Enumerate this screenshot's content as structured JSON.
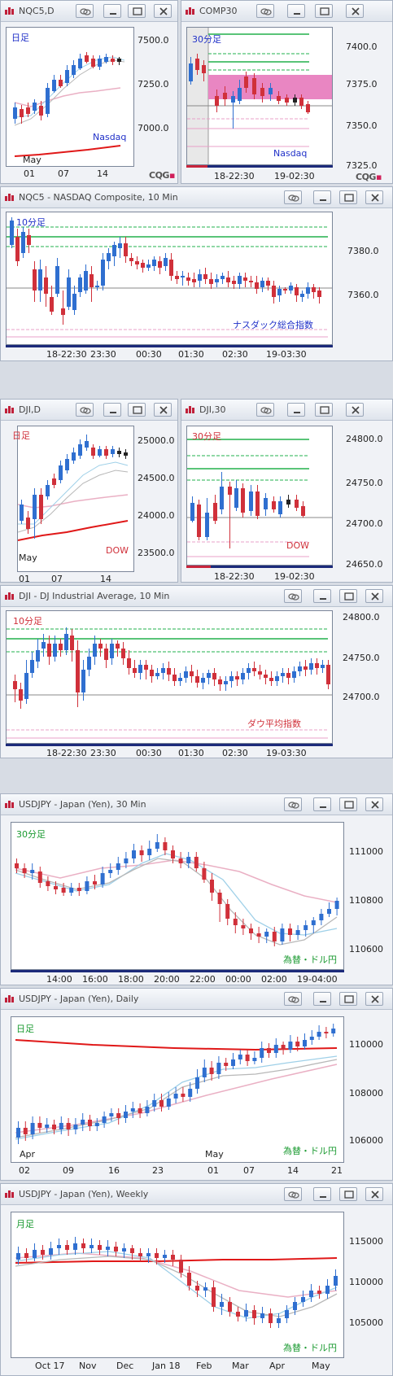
{
  "nqc5_daily": {
    "title": "NQC5,D",
    "period": "日足",
    "name": "Nasdaq",
    "y_ticks": [
      "7500.0",
      "7250.0",
      "7000.0"
    ],
    "x_ticks": [
      "01",
      "07",
      "14"
    ],
    "month": "May"
  },
  "comp30": {
    "title": "COMP30",
    "period": "30分足",
    "name": "Nasdaq",
    "y_ticks": [
      "7400.0",
      "7375.0",
      "7350.0",
      "7325.0"
    ],
    "x_ticks": [
      "18-22:30",
      "19-02:30"
    ]
  },
  "nqc5_10min": {
    "title": "NQC5 - NASDAQ Composite, 10 Min",
    "period": "10分足",
    "name": "ナスダック総合指数",
    "y_ticks": [
      "7380.0",
      "7360.0"
    ],
    "x_ticks": [
      "18-22:30",
      "23:30",
      "00:30",
      "01:30",
      "02:30",
      "19-03:30"
    ]
  },
  "dji_daily": {
    "title": "DJI,D",
    "period": "日足",
    "name": "DOW",
    "y_ticks": [
      "25000.0",
      "24500.0",
      "24000.0",
      "23500.0"
    ],
    "x_ticks": [
      "01",
      "07",
      "14"
    ],
    "month": "May"
  },
  "dji30": {
    "title": "DJI,30",
    "period": "30分足",
    "name": "DOW",
    "y_ticks": [
      "24800.0",
      "24750.0",
      "24700.0",
      "24650.0"
    ],
    "x_ticks": [
      "18-22:30",
      "19-02:30"
    ]
  },
  "dji_10min": {
    "title": "DJI - DJ Industrial Average, 10 Min",
    "period": "10分足",
    "name": "ダウ平均指数",
    "y_ticks": [
      "24800.0",
      "24750.0",
      "24700.0"
    ],
    "x_ticks": [
      "18-22:30",
      "23:30",
      "00:30",
      "01:30",
      "02:30",
      "19-03:30"
    ]
  },
  "usdjpy_30": {
    "title": "USDJPY - Japan (Yen), 30 Min",
    "period": "30分足",
    "name": "為替・ドル円",
    "y_ticks": [
      "111000",
      "110800",
      "110600"
    ],
    "x_ticks": [
      "14:00",
      "16:00",
      "18:00",
      "20:00",
      "22:00",
      "00:00",
      "02:00",
      "19-04:00"
    ]
  },
  "usdjpy_daily": {
    "title": "USDJPY - Japan (Yen), Daily",
    "period": "日足",
    "name": "為替・ドル円",
    "y_ticks": [
      "110000",
      "108000",
      "106000"
    ],
    "x_ticks": [
      "02",
      "09",
      "16",
      "23",
      "01",
      "07",
      "14",
      "21"
    ],
    "months": [
      "Apr",
      "May"
    ]
  },
  "usdjpy_weekly": {
    "title": "USDJPY - Japan (Yen), Weekly",
    "period": "月足",
    "name": "為替・ドル円",
    "y_ticks": [
      "115000",
      "110000",
      "105000"
    ],
    "x_ticks": [
      "Oct 17",
      "Nov",
      "Dec",
      "Jan 18",
      "Feb",
      "Mar",
      "Apr",
      "May"
    ]
  },
  "brand": {
    "cqg": "CQG"
  },
  "colors": {
    "up": "#2f6fd0",
    "down": "#d0303a",
    "green": "#22b14c",
    "pink": "#e8a0c8",
    "ma_red": "#e01818",
    "ma_light": "#9fd0e8",
    "ma_pink": "#eab0c4"
  }
}
